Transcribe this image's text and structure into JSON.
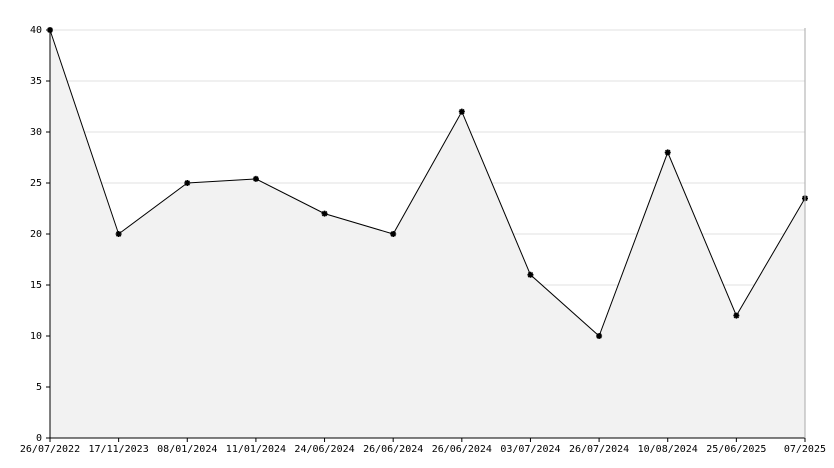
{
  "chart_data": {
    "type": "area",
    "categories": [
      "26/07/2022",
      "17/11/2023",
      "08/01/2024",
      "11/01/2024",
      "24/06/2024",
      "26/06/2024",
      "26/06/2024",
      "03/07/2024",
      "26/07/2024",
      "10/08/2024",
      "25/06/2025",
      "07/2025"
    ],
    "values": [
      40,
      20,
      25,
      25.4,
      22,
      20,
      32,
      16,
      10,
      28,
      12,
      23.5
    ],
    "color": "#000000",
    "fill": "#f2f2f2",
    "ylim": [
      0,
      40
    ],
    "yticks": [
      0,
      5,
      10,
      15,
      20,
      25,
      30,
      35,
      40
    ],
    "grid": true
  }
}
